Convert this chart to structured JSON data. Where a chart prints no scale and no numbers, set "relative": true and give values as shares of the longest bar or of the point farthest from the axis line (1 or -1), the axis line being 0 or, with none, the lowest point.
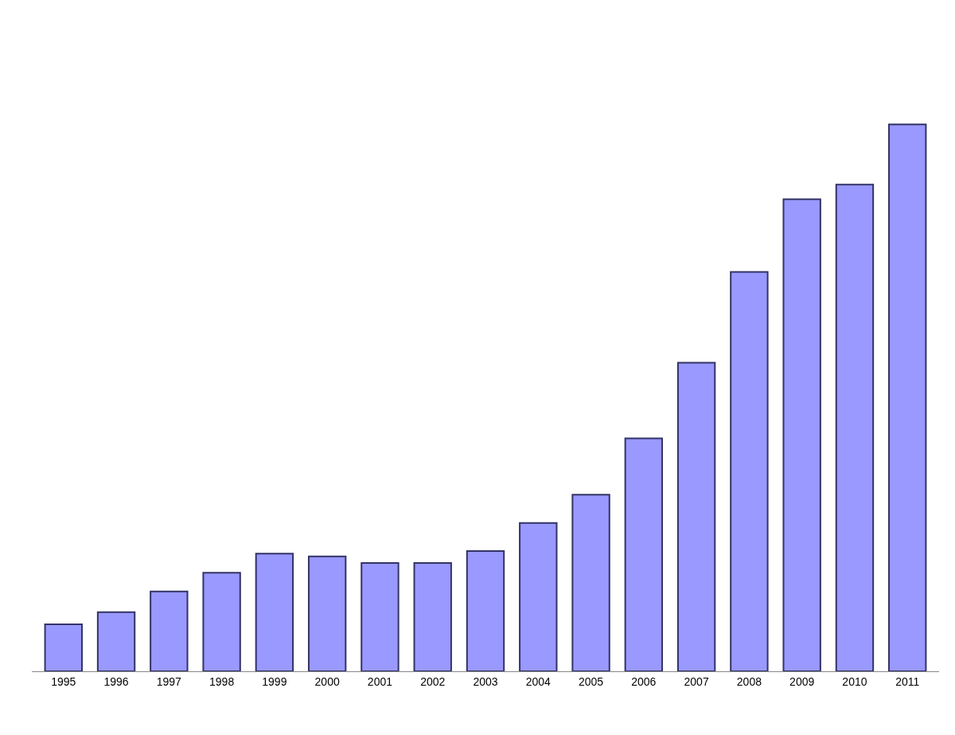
{
  "chart_data": {
    "type": "bar",
    "relative": true,
    "categories": [
      "1995",
      "1996",
      "1997",
      "1998",
      "1999",
      "2000",
      "2001",
      "2002",
      "2003",
      "2004",
      "2005",
      "2006",
      "2007",
      "2008",
      "2009",
      "2010",
      "2011"
    ],
    "series": [
      {
        "color": "#9999ff",
        "values": [
          0.086,
          0.108,
          0.146,
          0.18,
          0.215,
          0.21,
          0.198,
          0.198,
          0.22,
          0.271,
          0.323,
          0.426,
          0.564,
          0.73,
          0.863,
          0.89,
          1
        ]
      }
    ]
  }
}
